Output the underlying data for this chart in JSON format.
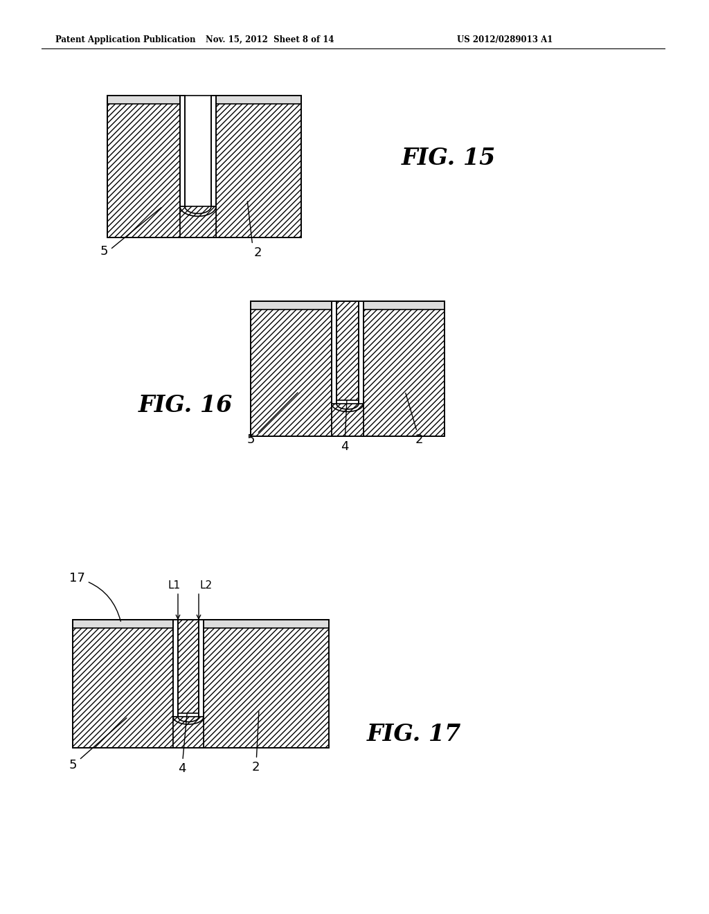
{
  "bg_color": "#ffffff",
  "header_left": "Patent Application Publication",
  "header_mid": "Nov. 15, 2012  Sheet 8 of 14",
  "header_right": "US 2012/0289013 A1",
  "fig15_label": "FIG. 15",
  "fig16_label": "FIG. 16",
  "fig17_label": "FIG. 17",
  "hatch_pattern": "////",
  "face_color": "#ffffff",
  "line_color": "#000000",
  "cap_color": "#dddddd"
}
